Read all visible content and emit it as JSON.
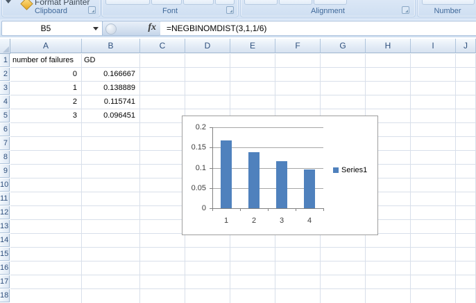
{
  "ribbon": {
    "format_painter": "Format Painter",
    "groups": [
      {
        "label": "Clipboard"
      },
      {
        "label": "Font"
      },
      {
        "label": "Alignment"
      },
      {
        "label": "Number"
      }
    ]
  },
  "formula_bar": {
    "name_box": "B5",
    "fx": "fx",
    "formula": "=NEGBINOMDIST(3,1,1/6)"
  },
  "sheet": {
    "column_headers": [
      "A",
      "B",
      "C",
      "D",
      "E",
      "F",
      "G",
      "H",
      "I",
      "J"
    ],
    "row_headers": [
      "1",
      "2",
      "3",
      "4",
      "5",
      "6",
      "7",
      "8",
      "9",
      "10",
      "11",
      "12",
      "13",
      "14",
      "15",
      "16",
      "17",
      "18"
    ],
    "cells": [
      {
        "ref": "A1",
        "col": "A",
        "row": 1,
        "value": "number of failures",
        "align": "left"
      },
      {
        "ref": "B1",
        "col": "B",
        "row": 1,
        "value": "GD",
        "align": "left"
      },
      {
        "ref": "A2",
        "col": "A",
        "row": 2,
        "value": "0",
        "align": "right"
      },
      {
        "ref": "B2",
        "col": "B",
        "row": 2,
        "value": "0.166667",
        "align": "right"
      },
      {
        "ref": "A3",
        "col": "A",
        "row": 3,
        "value": "1",
        "align": "right"
      },
      {
        "ref": "B3",
        "col": "B",
        "row": 3,
        "value": "0.138889",
        "align": "right"
      },
      {
        "ref": "A4",
        "col": "A",
        "row": 4,
        "value": "2",
        "align": "right"
      },
      {
        "ref": "B4",
        "col": "B",
        "row": 4,
        "value": "0.115741",
        "align": "right"
      },
      {
        "ref": "A5",
        "col": "A",
        "row": 5,
        "value": "3",
        "align": "right"
      },
      {
        "ref": "B5",
        "col": "B",
        "row": 5,
        "value": "0.096451",
        "align": "right"
      }
    ]
  },
  "chart_data": {
    "type": "bar",
    "categories": [
      "1",
      "2",
      "3",
      "4"
    ],
    "series": [
      {
        "name": "Series1",
        "values": [
          0.166667,
          0.138889,
          0.115741,
          0.096451
        ]
      }
    ],
    "title": "",
    "xlabel": "",
    "ylabel": "",
    "ylim": [
      0,
      0.2
    ],
    "yticks": [
      {
        "value": 0,
        "label": "0"
      },
      {
        "value": 0.05,
        "label": "0.05"
      },
      {
        "value": 0.1,
        "label": "0.1"
      },
      {
        "value": 0.15,
        "label": "0.15"
      },
      {
        "value": 0.2,
        "label": "0.2"
      }
    ],
    "grid": true,
    "legend_position": "right",
    "legend_entries": [
      "Series1"
    ],
    "bar_color": "#4f81bd"
  },
  "colors": {
    "bar": "#4f81bd",
    "header_text": "#2e4f7c",
    "group_label": "#3f6899",
    "sheet_gridline": "#d8dfea",
    "chart_gridline": "#a6a6a6"
  }
}
